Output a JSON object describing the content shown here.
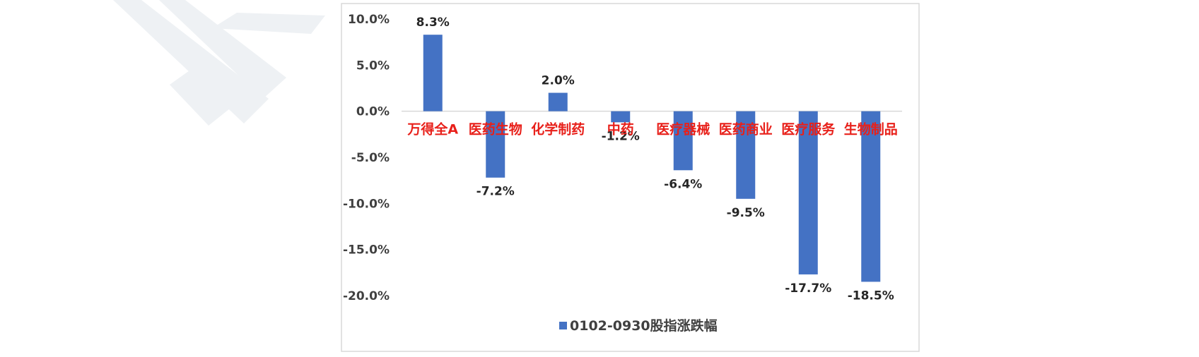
{
  "chart_data": {
    "type": "bar",
    "categories": [
      "万得全A",
      "医药生物",
      "化学制药",
      "中药",
      "医疗器械",
      "医药商业",
      "医疗服务",
      "生物制品"
    ],
    "series": [
      {
        "name": "0102-0930股指涨跌幅",
        "values": [
          8.3,
          -7.2,
          2.0,
          -1.2,
          -6.4,
          -9.5,
          -17.7,
          -18.5
        ],
        "labels": [
          "8.3%",
          "-7.2%",
          "2.0%",
          "-1.2%",
          "-6.4%",
          "-9.5%",
          "-17.7%",
          "-18.5%"
        ]
      }
    ],
    "title": "",
    "xlabel": "",
    "ylabel": "",
    "ylim": [
      -20,
      10
    ],
    "yticks": [
      10,
      5,
      0,
      -5,
      -10,
      -15,
      -20
    ],
    "ytick_labels": [
      "10.0%",
      "5.0%",
      "0.0%",
      "-5.0%",
      "-10.0%",
      "-15.0%",
      "-20.0%"
    ],
    "grid": false,
    "legend": "bottom",
    "colors": {
      "bar": "#4472C4",
      "category_label": "#E8201A",
      "frame": "#D9D9D9",
      "watermark": "#E9ECF0"
    }
  }
}
